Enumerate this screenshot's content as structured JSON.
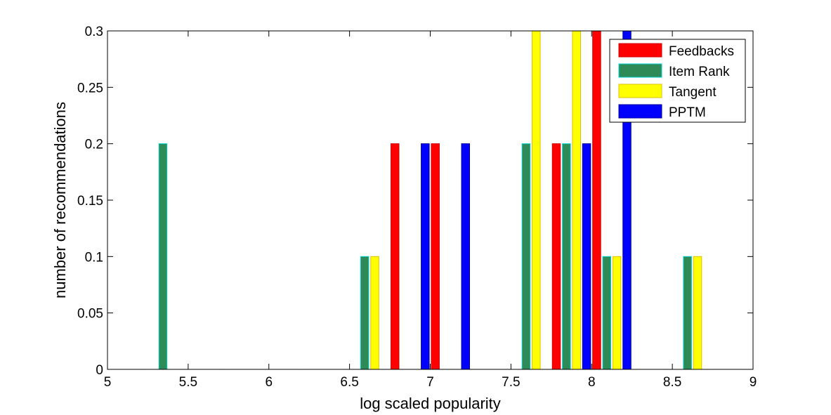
{
  "chart_data": {
    "type": "bar",
    "title": "",
    "xlabel": "log scaled popularity",
    "ylabel": "number of recommendations",
    "xlim": [
      5,
      9
    ],
    "ylim": [
      0,
      0.3
    ],
    "xticks": [
      "5",
      "5.5",
      "6",
      "6.5",
      "7",
      "7.5",
      "8",
      "8.5",
      "9"
    ],
    "yticks": [
      "0",
      "0.05",
      "0.1",
      "0.15",
      "0.2",
      "0.25",
      "0.3"
    ],
    "grid": false,
    "legend_position": "top-right",
    "bin_centers": [
      5.125,
      5.375,
      5.625,
      5.875,
      6.125,
      6.375,
      6.625,
      6.875,
      7.125,
      7.375,
      7.625,
      7.875,
      8.125,
      8.375,
      8.625,
      8.875
    ],
    "series": [
      {
        "name": "Feedbacks",
        "color": "#ff0000",
        "edge": "#cc0000",
        "values": [
          0,
          0,
          0,
          0,
          0,
          0,
          0,
          0.2,
          0.2,
          0,
          0,
          0.2,
          0.3,
          0,
          0,
          0
        ]
      },
      {
        "name": "Item Rank",
        "color": "#2e8b57",
        "edge": "#00d0d0",
        "values": [
          0,
          0.2,
          0,
          0,
          0,
          0,
          0.1,
          0,
          0,
          0,
          0.2,
          0.2,
          0.1,
          0,
          0.1,
          0
        ]
      },
      {
        "name": "Tangent",
        "color": "#ffff00",
        "edge": "#e0c000",
        "values": [
          0,
          0,
          0,
          0,
          0,
          0,
          0.1,
          0,
          0,
          0,
          0.3,
          0.3,
          0.1,
          0,
          0.1,
          0
        ]
      },
      {
        "name": "PPTM",
        "color": "#0000ff",
        "edge": "#000099",
        "values": [
          0,
          0,
          0,
          0,
          0,
          0,
          0,
          0.2,
          0.2,
          0,
          0,
          0.2,
          0.3,
          0,
          0,
          0
        ]
      }
    ]
  }
}
